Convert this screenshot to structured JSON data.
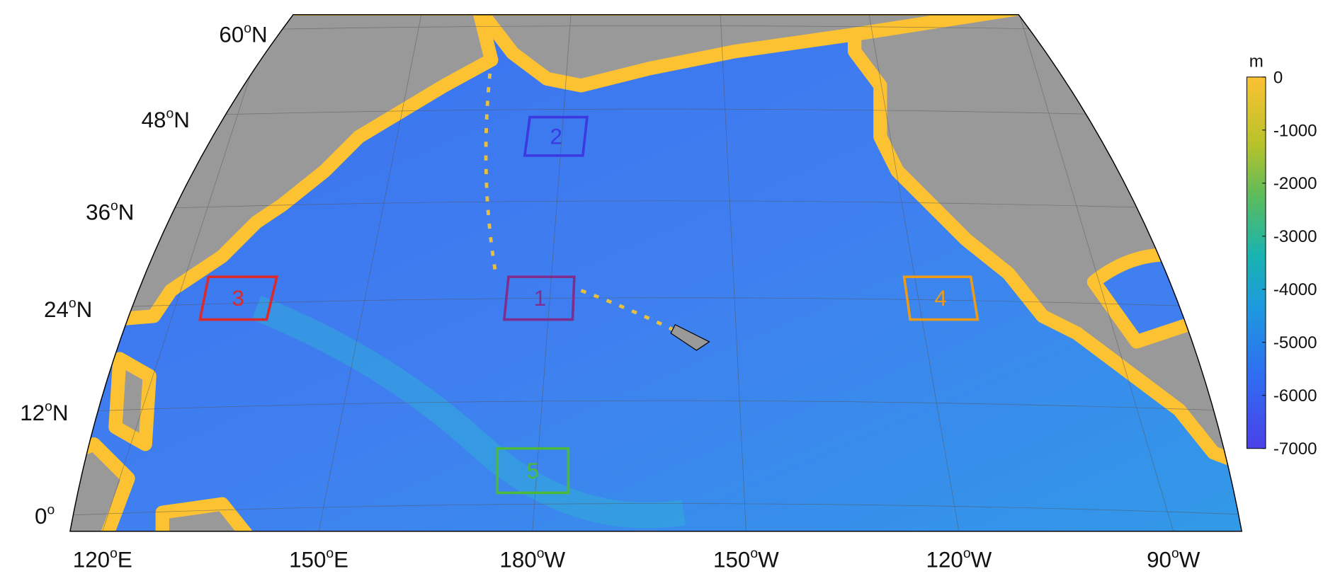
{
  "map": {
    "lat_labels": [
      {
        "deg": "60",
        "sup": "o",
        "dir": "N"
      },
      {
        "deg": "48",
        "sup": "o",
        "dir": "N"
      },
      {
        "deg": "36",
        "sup": "o",
        "dir": "N"
      },
      {
        "deg": "24",
        "sup": "o",
        "dir": "N"
      },
      {
        "deg": "12",
        "sup": "o",
        "dir": "N"
      },
      {
        "deg": "0",
        "sup": "o"
      }
    ],
    "lon_labels": [
      {
        "deg": "120",
        "sup": "o",
        "dir": "E"
      },
      {
        "deg": "150",
        "sup": "o",
        "dir": "E"
      },
      {
        "deg": "180",
        "sup": "o",
        "dir": "W"
      },
      {
        "deg": "150",
        "sup": "o",
        "dir": "W"
      },
      {
        "deg": "120",
        "sup": "o",
        "dir": "W"
      },
      {
        "deg": "90",
        "sup": "o",
        "dir": "W"
      }
    ],
    "regions": [
      {
        "label": "1",
        "color": "#7e2f8e"
      },
      {
        "label": "2",
        "color": "#3a3ae0"
      },
      {
        "label": "3",
        "color": "#d92b2b"
      },
      {
        "label": "4",
        "color": "#ec9a1a"
      },
      {
        "label": "5",
        "color": "#4cb83c"
      }
    ],
    "colorbar": {
      "label": "m",
      "lim": [
        -7000,
        0
      ],
      "ticks": [
        0,
        -1000,
        -2000,
        -3000,
        -4000,
        -5000,
        -6000,
        -7000
      ]
    }
  }
}
